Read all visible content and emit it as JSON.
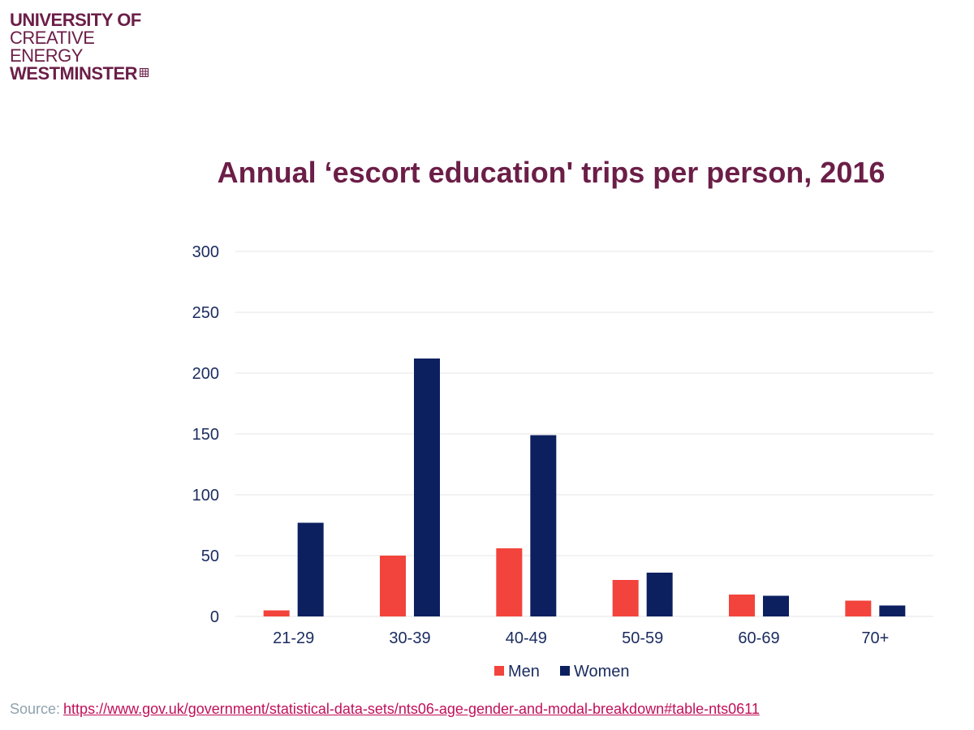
{
  "logo": {
    "line1": "UNIVERSITY OF",
    "line2": "CREATIVE",
    "line3": "ENERGY",
    "line4": "WESTMINSTER"
  },
  "colors": {
    "brand": "#6b1e47",
    "men": "#f2443c",
    "women": "#0c2060",
    "axis_text": "#1a2b5f",
    "grid": "#e6e6e6",
    "source_label": "#8fa2ad",
    "link": "#c0105a"
  },
  "source": {
    "label": "Source:",
    "url_text": "https://www.gov.uk/government/statistical-data-sets/nts06-age-gender-and-modal-breakdown#table-nts0611"
  },
  "chart_data": {
    "type": "bar",
    "title": "Annual ‘escort education' trips per person, 2016",
    "xlabel": "",
    "ylabel": "",
    "categories": [
      "21-29",
      "30-39",
      "40-49",
      "50-59",
      "60-69",
      "70+"
    ],
    "series": [
      {
        "name": "Men",
        "values": [
          5,
          50,
          56,
          30,
          18,
          13
        ]
      },
      {
        "name": "Women",
        "values": [
          77,
          212,
          149,
          36,
          17,
          9
        ]
      }
    ],
    "ylim": [
      0,
      300
    ],
    "yticks": [
      0,
      50,
      100,
      150,
      200,
      250,
      300
    ],
    "grid": true,
    "legend_position": "bottom"
  }
}
